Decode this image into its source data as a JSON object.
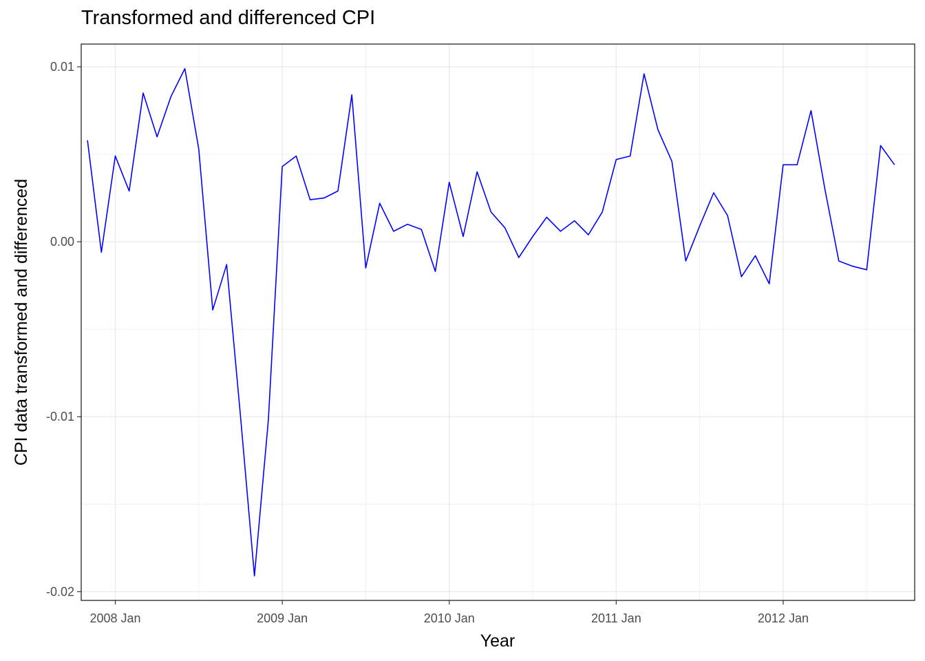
{
  "chart_data": {
    "type": "line",
    "title": "Transformed and differenced CPI",
    "xlabel": "Year",
    "ylabel": "CPI data transformed and differenced",
    "x_ticks": [
      {
        "date": "2008-01",
        "label": "2008 Jan"
      },
      {
        "date": "2009-01",
        "label": "2009 Jan"
      },
      {
        "date": "2010-01",
        "label": "2010 Jan"
      },
      {
        "date": "2011-01",
        "label": "2011 Jan"
      },
      {
        "date": "2012-01",
        "label": "2012 Jan"
      }
    ],
    "y_ticks": [
      {
        "value": 0.01,
        "label": "0.01"
      },
      {
        "value": 0.0,
        "label": "0.00"
      },
      {
        "value": -0.01,
        "label": "-0.01"
      },
      {
        "value": -0.02,
        "label": "-0.02"
      }
    ],
    "xlim": [
      "2007-10",
      "2012-10"
    ],
    "ylim": [
      -0.0205,
      0.0113
    ],
    "grid": true,
    "legend": "none",
    "colors": {
      "line": "#0000ff",
      "grid": "#ebebeb",
      "panel_border": "#333333"
    },
    "series": [
      {
        "x": [
          "2007-11",
          "2007-12",
          "2008-01",
          "2008-02",
          "2008-03",
          "2008-04",
          "2008-05",
          "2008-06",
          "2008-07",
          "2008-08",
          "2008-09",
          "2008-10",
          "2008-11",
          "2008-12",
          "2009-01",
          "2009-02",
          "2009-03",
          "2009-04",
          "2009-05",
          "2009-06",
          "2009-07",
          "2009-08",
          "2009-09",
          "2009-10",
          "2009-11",
          "2009-12",
          "2010-01",
          "2010-02",
          "2010-03",
          "2010-04",
          "2010-05",
          "2010-06",
          "2010-07",
          "2010-08",
          "2010-09",
          "2010-10",
          "2010-11",
          "2010-12",
          "2011-01",
          "2011-02",
          "2011-03",
          "2011-04",
          "2011-05",
          "2011-06",
          "2011-07",
          "2011-08",
          "2011-09",
          "2011-10",
          "2011-11",
          "2011-12",
          "2012-01",
          "2012-02",
          "2012-03",
          "2012-04",
          "2012-05",
          "2012-06",
          "2012-07",
          "2012-08",
          "2012-09"
        ],
        "values": [
          0.0058,
          -0.0006,
          0.0049,
          0.0029,
          0.0085,
          0.006,
          0.0083,
          0.0099,
          0.0053,
          -0.0039,
          -0.0013,
          -0.01,
          -0.0191,
          -0.0102,
          0.0043,
          0.0049,
          0.0024,
          0.0025,
          0.0029,
          0.0084,
          -0.0015,
          0.0022,
          0.0006,
          0.001,
          0.0007,
          -0.0017,
          0.0034,
          0.0003,
          0.004,
          0.0017,
          0.0008,
          -0.0009,
          0.0003,
          0.0014,
          0.0006,
          0.0012,
          0.0004,
          0.0017,
          0.0047,
          0.0049,
          0.0096,
          0.0064,
          0.0046,
          -0.0011,
          0.0009,
          0.0028,
          0.0015,
          -0.002,
          -0.0008,
          -0.0024,
          0.0044,
          0.0044,
          0.0075,
          0.003,
          -0.0011,
          -0.0014,
          -0.0016,
          0.0055,
          0.0044
        ]
      }
    ]
  }
}
